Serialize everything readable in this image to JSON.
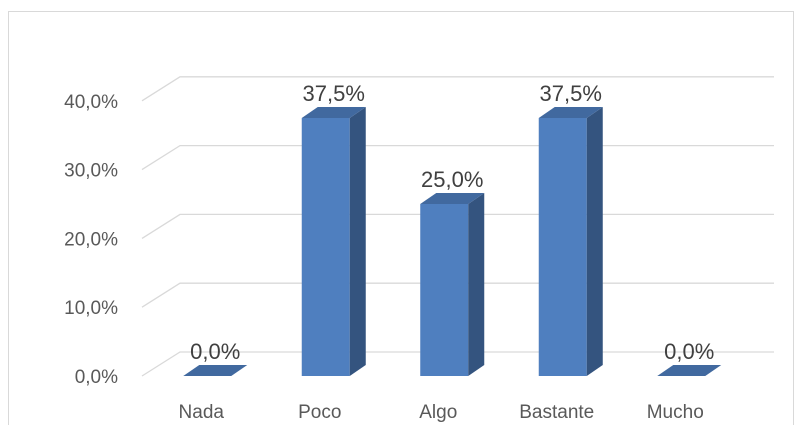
{
  "chart_data": {
    "type": "bar",
    "style": "3d-column",
    "categories": [
      "Nada",
      "Poco",
      "Algo",
      "Bastante",
      "Mucho"
    ],
    "values": [
      0.0,
      37.5,
      25.0,
      37.5,
      0.0
    ],
    "data_labels": [
      "0,0%",
      "37,5%",
      "25,0%",
      "37,5%",
      "0,0%"
    ],
    "y_ticks": [
      0,
      10,
      20,
      30,
      40
    ],
    "y_tick_labels": [
      "0,0%",
      "10,0%",
      "20,0%",
      "30,0%",
      "40,0%"
    ],
    "ylim": [
      0,
      40
    ],
    "title": "",
    "xlabel": "",
    "ylabel": "",
    "grid": true,
    "legend": "none",
    "colors": {
      "front": "#4f7fbf",
      "side": "#34547f",
      "top": "#41699f",
      "grid": "#d9d9d9",
      "text": "#595959"
    }
  }
}
